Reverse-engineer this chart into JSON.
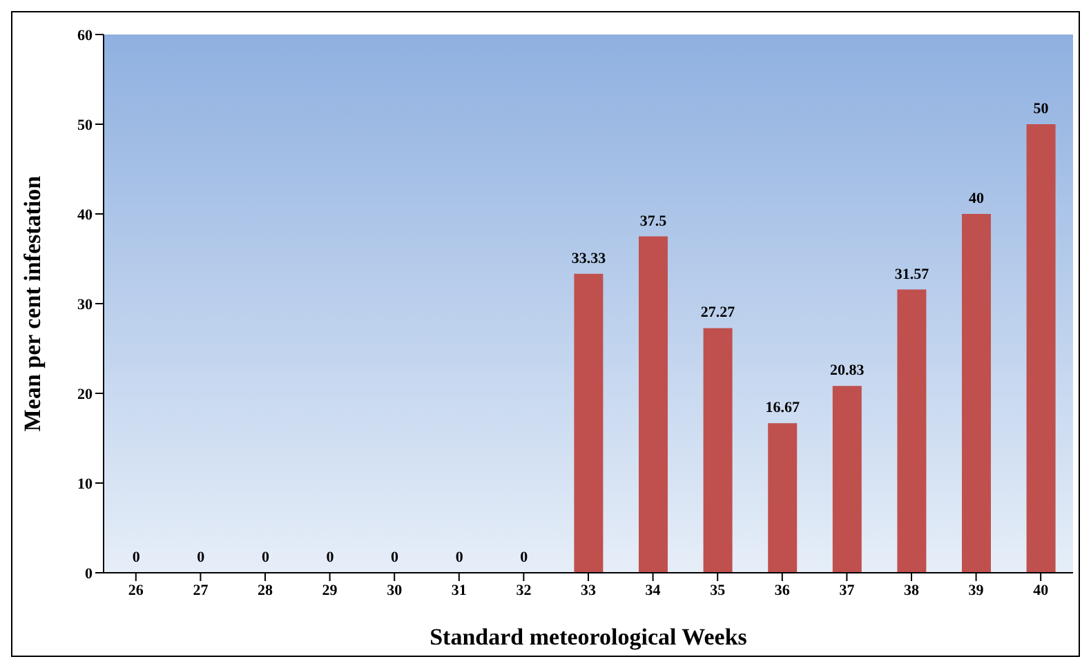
{
  "chart_data": {
    "type": "bar",
    "xlabel": "Standard meteorological Weeks",
    "ylabel": "Mean per cent infestation",
    "categories": [
      "26",
      "27",
      "28",
      "29",
      "30",
      "31",
      "32",
      "33",
      "34",
      "35",
      "36",
      "37",
      "38",
      "39",
      "40"
    ],
    "values": [
      0,
      0,
      0,
      0,
      0,
      0,
      0,
      33.33,
      37.5,
      27.27,
      16.67,
      20.83,
      31.57,
      40,
      50
    ],
    "color": "#c0504d",
    "ylim": [
      0,
      60
    ],
    "yticks": [
      0,
      10,
      20,
      30,
      40,
      50,
      60
    ],
    "data_labels": true,
    "grid": false
  }
}
